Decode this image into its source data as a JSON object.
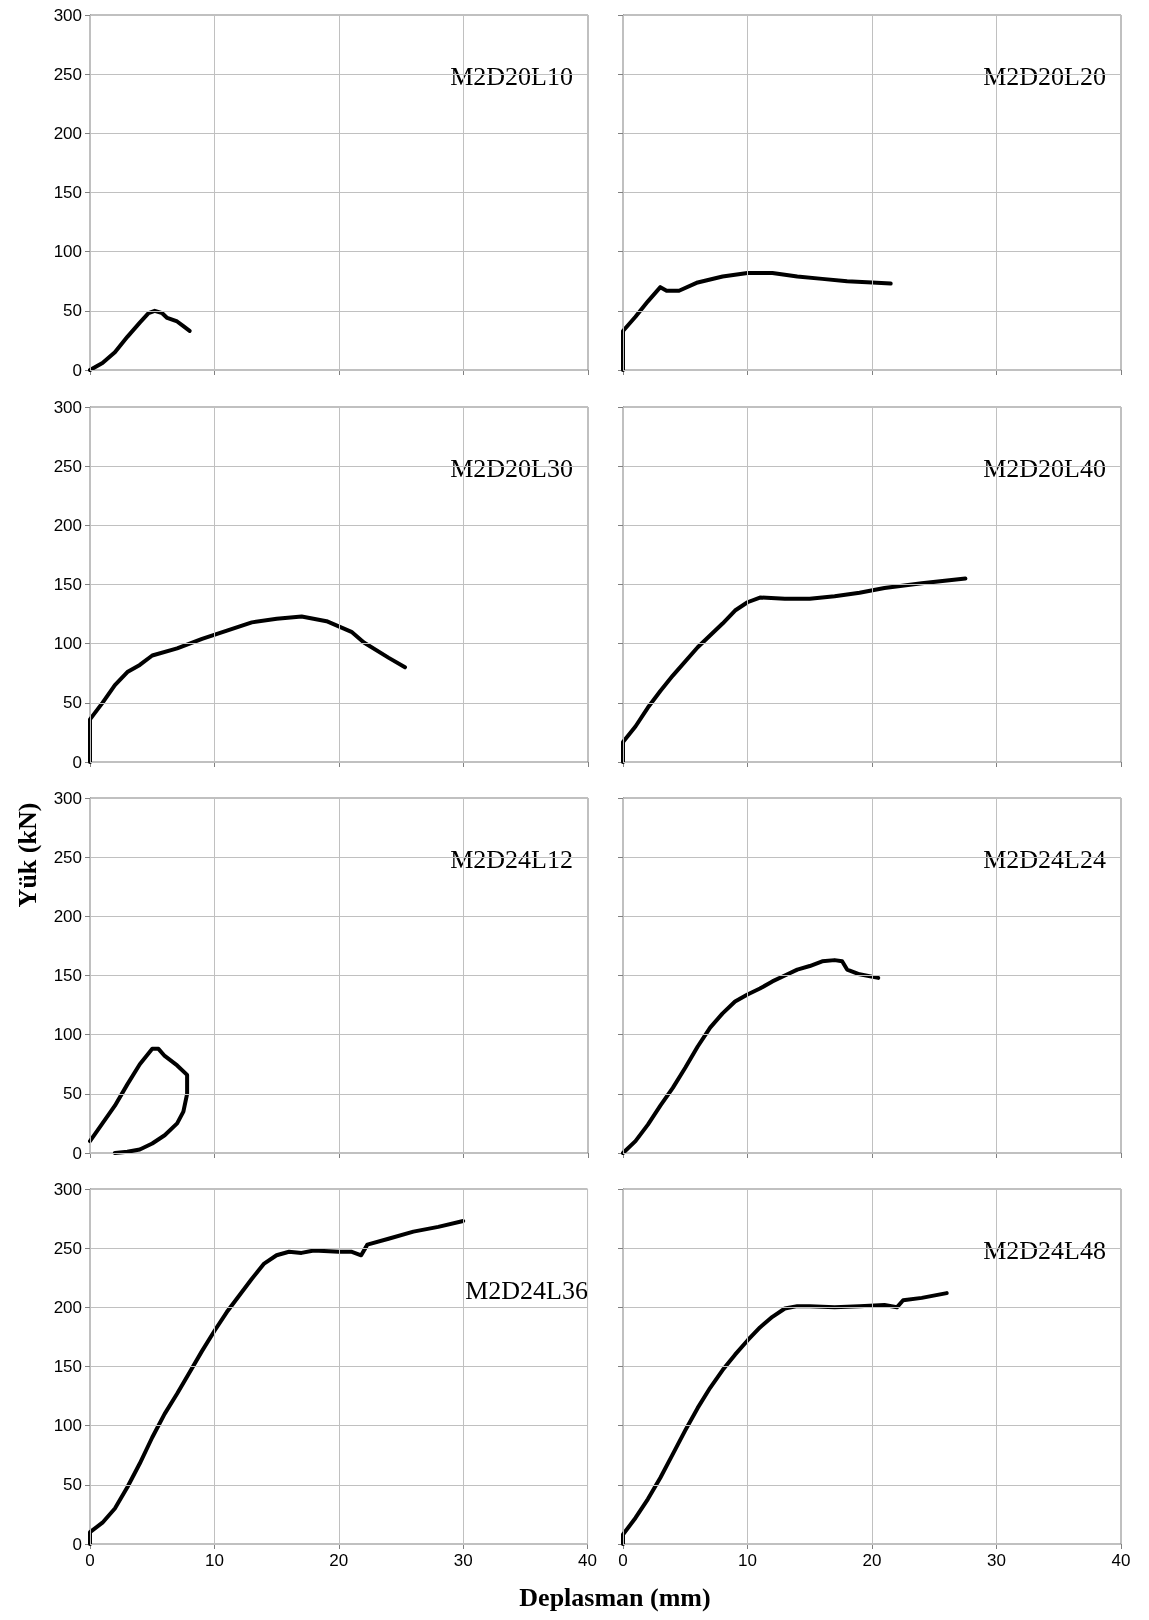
{
  "chart_data": [
    {
      "type": "line",
      "title": "M2D20L10",
      "xlim": [
        0,
        40
      ],
      "ylim": [
        0,
        300
      ],
      "xticks": [
        0,
        10,
        20,
        30,
        40
      ],
      "yticks": [
        0,
        50,
        100,
        150,
        200,
        250,
        300
      ],
      "grid": true,
      "marker": "none",
      "line_style": "solid",
      "tick_labels": "y",
      "series": [
        {
          "color": "#000000",
          "x": [
            0,
            0.5,
            1,
            2,
            3,
            4,
            4.7,
            5.2,
            5.8,
            6.2,
            7,
            7.5,
            8
          ],
          "values": [
            0,
            3,
            6,
            15,
            28,
            40,
            48,
            50,
            48,
            44,
            41,
            37,
            33
          ]
        }
      ]
    },
    {
      "type": "line",
      "title": "M2D20L20",
      "xlim": [
        0,
        40
      ],
      "ylim": [
        0,
        300
      ],
      "xticks": [
        0,
        10,
        20,
        30,
        40
      ],
      "yticks": [
        0,
        50,
        100,
        150,
        200,
        250,
        300
      ],
      "grid": true,
      "marker": "none",
      "line_style": "solid",
      "tick_labels": false,
      "series": [
        {
          "color": "#000000",
          "x": [
            0,
            0,
            1,
            2,
            3,
            3.5,
            4.5,
            6,
            8,
            10,
            12,
            14,
            16,
            18,
            20,
            21.5
          ],
          "values": [
            0,
            33,
            45,
            58,
            70,
            67,
            67,
            74,
            79,
            82,
            82,
            79,
            77,
            75,
            74,
            73
          ]
        }
      ]
    },
    {
      "type": "line",
      "title": "M2D20L30",
      "xlim": [
        0,
        40
      ],
      "ylim": [
        0,
        300
      ],
      "xticks": [
        0,
        10,
        20,
        30,
        40
      ],
      "yticks": [
        0,
        50,
        100,
        150,
        200,
        250,
        300
      ],
      "grid": true,
      "marker": "none",
      "line_style": "solid",
      "tick_labels": "y",
      "series": [
        {
          "color": "#000000",
          "x": [
            0,
            0,
            1,
            2,
            3,
            4,
            5,
            7,
            9,
            11,
            13,
            15,
            17,
            19,
            21,
            22,
            24,
            25.3
          ],
          "values": [
            0,
            36,
            50,
            65,
            76,
            82,
            90,
            96,
            104,
            111,
            118,
            121,
            123,
            119,
            110,
            101,
            88,
            80
          ]
        }
      ]
    },
    {
      "type": "line",
      "title": "M2D20L40",
      "xlim": [
        0,
        40
      ],
      "ylim": [
        0,
        300
      ],
      "xticks": [
        0,
        10,
        20,
        30,
        40
      ],
      "yticks": [
        0,
        50,
        100,
        150,
        200,
        250,
        300
      ],
      "grid": true,
      "marker": "none",
      "line_style": "solid",
      "tick_labels": false,
      "series": [
        {
          "color": "#000000",
          "x": [
            0,
            0,
            1,
            2,
            3,
            4,
            6,
            8,
            9,
            10,
            11,
            13,
            15,
            17,
            19,
            21,
            24,
            27.5
          ],
          "values": [
            0,
            17,
            30,
            46,
            60,
            73,
            97,
            117,
            128,
            135,
            139,
            138,
            138,
            140,
            143,
            147,
            151,
            155
          ]
        }
      ]
    },
    {
      "type": "line",
      "title": "M2D24L12",
      "ylabel": "Yük (kN)",
      "xlim": [
        0,
        40
      ],
      "ylim": [
        0,
        300
      ],
      "xticks": [
        0,
        10,
        20,
        30,
        40
      ],
      "yticks": [
        0,
        50,
        100,
        150,
        200,
        250,
        300
      ],
      "grid": true,
      "marker": "none",
      "line_style": "solid",
      "tick_labels": "y",
      "series": [
        {
          "color": "#000000",
          "x": [
            0,
            1,
            2,
            3,
            4,
            5,
            5.5,
            6,
            7,
            7.8,
            7.8,
            7.5,
            7,
            6,
            5,
            4,
            3,
            2
          ],
          "values": [
            10,
            25,
            40,
            58,
            75,
            88,
            88,
            82,
            74,
            66,
            50,
            35,
            25,
            15,
            8,
            3,
            1,
            0
          ]
        }
      ]
    },
    {
      "type": "line",
      "title": "M2D24L24",
      "xlim": [
        0,
        40
      ],
      "ylim": [
        0,
        300
      ],
      "xticks": [
        0,
        10,
        20,
        30,
        40
      ],
      "yticks": [
        0,
        50,
        100,
        150,
        200,
        250,
        300
      ],
      "grid": true,
      "marker": "none",
      "line_style": "solid",
      "tick_labels": false,
      "series": [
        {
          "color": "#000000",
          "x": [
            0,
            1,
            2,
            3,
            4,
            5,
            6,
            7,
            8,
            9,
            10,
            11,
            12,
            13,
            14,
            15,
            16,
            17,
            17.6,
            18,
            19,
            20.5
          ],
          "values": [
            0,
            10,
            24,
            40,
            55,
            72,
            90,
            106,
            118,
            128,
            134,
            139,
            145,
            150,
            155,
            158,
            162,
            163,
            162,
            155,
            151,
            148
          ]
        }
      ]
    },
    {
      "type": "line",
      "title": "M2D24L36",
      "xlabel": "Deplasman (mm)",
      "xlim": [
        0,
        40
      ],
      "ylim": [
        0,
        300
      ],
      "xticks": [
        0,
        10,
        20,
        30,
        40
      ],
      "yticks": [
        0,
        50,
        100,
        150,
        200,
        250,
        300
      ],
      "grid": true,
      "marker": "none",
      "line_style": "solid",
      "series": [
        {
          "color": "#000000",
          "x": [
            0,
            0,
            1,
            2,
            3,
            4,
            5,
            6,
            7,
            8,
            9,
            10,
            11,
            12,
            13,
            14,
            15,
            16,
            17,
            18,
            20,
            21,
            21.8,
            22.3,
            24,
            26,
            28,
            30
          ],
          "values": [
            0,
            10,
            18,
            30,
            48,
            68,
            90,
            110,
            127,
            145,
            163,
            180,
            196,
            210,
            224,
            237,
            244,
            247,
            246,
            248,
            247,
            247,
            244,
            253,
            258,
            264,
            268,
            273
          ]
        }
      ]
    },
    {
      "type": "line",
      "title": "M2D24L48",
      "xlim": [
        0,
        40
      ],
      "ylim": [
        0,
        300
      ],
      "xticks": [
        0,
        10,
        20,
        30,
        40
      ],
      "yticks": [
        0,
        50,
        100,
        150,
        200,
        250,
        300
      ],
      "grid": true,
      "marker": "none",
      "line_style": "solid",
      "tick_labels": "x",
      "series": [
        {
          "color": "#000000",
          "x": [
            0,
            0,
            1,
            2,
            3,
            4,
            5,
            6,
            7,
            8,
            9,
            10,
            11,
            12,
            13,
            14,
            15,
            17,
            19,
            21,
            22,
            22.5,
            24,
            26
          ],
          "values": [
            0,
            8,
            22,
            38,
            56,
            76,
            96,
            115,
            132,
            147,
            160,
            172,
            183,
            192,
            199,
            201,
            201,
            200,
            201,
            202,
            200,
            206,
            208,
            212
          ]
        }
      ]
    }
  ]
}
